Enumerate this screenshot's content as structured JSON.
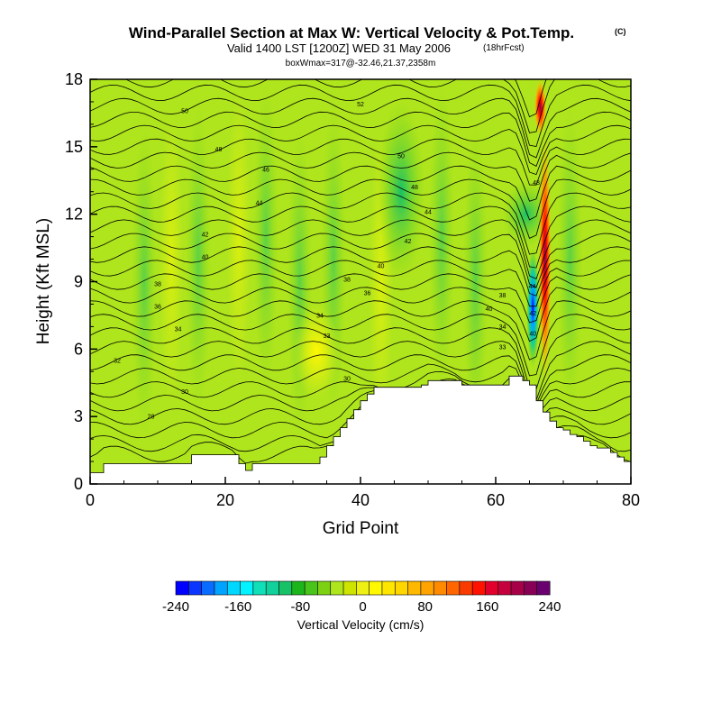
{
  "header": {
    "title": "Wind-Parallel Section at Max W: Vertical Velocity & Pot.Temp.",
    "copyright": "(C)",
    "valid": "Valid 1400 LST [1200Z] WED 31 May 2006",
    "forecast_tag": "(18hrFcst)",
    "box_info": "boxWmax=317@-32.46,21.37,2358m"
  },
  "chart_data": {
    "type": "heatmap",
    "xlabel": "Grid Point",
    "ylabel": "Height (Kft MSL)",
    "xlim": [
      0,
      80
    ],
    "ylim": [
      0,
      18
    ],
    "xticks": [
      0,
      20,
      40,
      60,
      80
    ],
    "yticks": [
      0,
      3,
      6,
      9,
      12,
      15,
      18
    ],
    "terrain": {
      "x": [
        0,
        1,
        2,
        12,
        15,
        19,
        22,
        23,
        24,
        25,
        31,
        34,
        35,
        36,
        37,
        38,
        39,
        40,
        41,
        42,
        44,
        46,
        47,
        48,
        49,
        50,
        51,
        55,
        58,
        59,
        60,
        61,
        62,
        63,
        64,
        65,
        66,
        67,
        68,
        69,
        70,
        71,
        72,
        73,
        74,
        75,
        76,
        77,
        78,
        79,
        80
      ],
      "height_kft": [
        0.5,
        0.5,
        0.9,
        0.9,
        1.3,
        1.3,
        0.9,
        0.6,
        0.9,
        0.9,
        0.9,
        1.2,
        1.7,
        2.1,
        2.5,
        2.9,
        3.3,
        3.7,
        4.0,
        4.3,
        4.3,
        4.3,
        4.3,
        4.3,
        4.4,
        4.6,
        4.6,
        4.4,
        4.4,
        4.4,
        4.4,
        4.4,
        4.8,
        4.8,
        4.6,
        4.4,
        3.7,
        3.2,
        2.8,
        2.5,
        2.4,
        2.2,
        2.1,
        1.9,
        1.7,
        1.6,
        1.6,
        1.4,
        1.2,
        1.0,
        0.9
      ]
    },
    "vertical_velocity_cm_s": {
      "background": 0,
      "features": [
        {
          "x": 65.5,
          "z_from": 5.2,
          "z_to": 10.5,
          "w": -240
        },
        {
          "x": 64.5,
          "z_from": 10.5,
          "z_to": 13.5,
          "w": -80
        },
        {
          "x": 67.3,
          "z_from": 4.5,
          "z_to": 15.5,
          "w": 220
        },
        {
          "x": 66.6,
          "z_from": 15.5,
          "z_to": 18,
          "w": 140
        },
        {
          "x": 33.5,
          "z_from": 3.8,
          "z_to": 8,
          "w": 40
        },
        {
          "x": 46,
          "z_from": 9,
          "z_to": 17,
          "w": -60
        }
      ]
    },
    "theta_isotherms": {
      "labels_present": [
        30,
        32,
        34,
        36,
        38,
        40,
        42,
        44,
        46,
        48,
        50,
        52
      ],
      "labels": [
        {
          "x": 9,
          "z": 2.9,
          "text": "28"
        },
        {
          "x": 14,
          "z": 4.0,
          "text": "30"
        },
        {
          "x": 4,
          "z": 5.4,
          "text": "32"
        },
        {
          "x": 13,
          "z": 6.8,
          "text": "34"
        },
        {
          "x": 10,
          "z": 7.8,
          "text": "36"
        },
        {
          "x": 10,
          "z": 8.8,
          "text": "38"
        },
        {
          "x": 17,
          "z": 10.0,
          "text": "40"
        },
        {
          "x": 17,
          "z": 11.0,
          "text": "42"
        },
        {
          "x": 25,
          "z": 12.4,
          "text": "44"
        },
        {
          "x": 26,
          "z": 13.9,
          "text": "46"
        },
        {
          "x": 19,
          "z": 14.8,
          "text": "48"
        },
        {
          "x": 14,
          "z": 16.5,
          "text": "50"
        },
        {
          "x": 40,
          "z": 16.8,
          "text": "52"
        },
        {
          "x": 46,
          "z": 14.5,
          "text": "50"
        },
        {
          "x": 48,
          "z": 13.1,
          "text": "48"
        },
        {
          "x": 50,
          "z": 12.0,
          "text": "44"
        },
        {
          "x": 47,
          "z": 10.7,
          "text": "42"
        },
        {
          "x": 43,
          "z": 9.6,
          "text": "40"
        },
        {
          "x": 38,
          "z": 9.0,
          "text": "38"
        },
        {
          "x": 41,
          "z": 8.4,
          "text": "36"
        },
        {
          "x": 34,
          "z": 7.4,
          "text": "34"
        },
        {
          "x": 35,
          "z": 6.5,
          "text": "33"
        },
        {
          "x": 38,
          "z": 4.6,
          "text": "30"
        },
        {
          "x": 61,
          "z": 8.3,
          "text": "38"
        },
        {
          "x": 59,
          "z": 7.7,
          "text": "40"
        },
        {
          "x": 61,
          "z": 6.9,
          "text": "34"
        },
        {
          "x": 61,
          "z": 6.0,
          "text": "33"
        },
        {
          "x": 66,
          "z": 13.3,
          "text": "48"
        },
        {
          "x": 65.4,
          "z": 8.7,
          "text": "44"
        },
        {
          "x": 65.5,
          "z": 7.5,
          "text": "42"
        },
        {
          "x": 65.5,
          "z": 6.6,
          "text": "40"
        }
      ]
    },
    "colorbar": {
      "label": "Vertical Velocity (cm/s)",
      "ticks": [
        -240,
        -160,
        -80,
        0,
        80,
        160,
        240
      ],
      "colors": [
        "#0000ff",
        "#0a36ff",
        "#0a6cff",
        "#00a3ff",
        "#00d7ff",
        "#00f3ff",
        "#11dfb8",
        "#11d09c",
        "#17c267",
        "#1cb51c",
        "#48c41b",
        "#7cd212",
        "#aee51d",
        "#cde300",
        "#eef014",
        "#fff800",
        "#ffe600",
        "#ffd600",
        "#ffb800",
        "#ffa300",
        "#ff8a00",
        "#ff6600",
        "#f83b00",
        "#ff1200",
        "#e2002c",
        "#c4003d",
        "#a60049",
        "#880055",
        "#6a0070"
      ]
    }
  }
}
